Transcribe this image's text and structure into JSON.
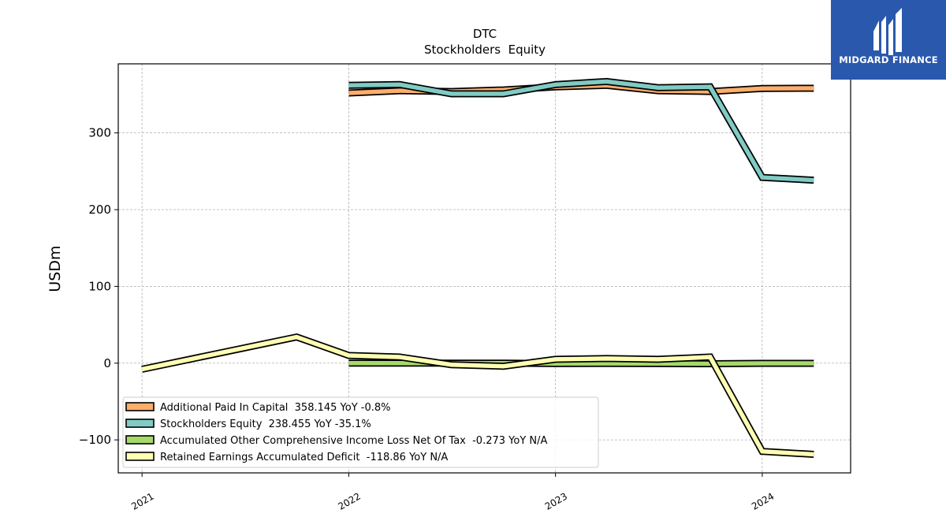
{
  "chart_data": {
    "type": "line",
    "title": "DTC",
    "subtitle": "Stockholders  Equity",
    "ylabel": "USDm",
    "xlabel": "",
    "xlim": [
      "2020-11-20",
      "2024-06-05"
    ],
    "ylim": [
      -143,
      390
    ],
    "yticks": [
      -100,
      0,
      100,
      200,
      300
    ],
    "ytick_labels": [
      "−100",
      "0",
      "100",
      "200",
      "300"
    ],
    "xticks": [
      "2021-01-01",
      "2022-01-01",
      "2023-01-01",
      "2024-01-01"
    ],
    "xtick_labels": [
      "2021",
      "2022",
      "2023",
      "2024"
    ],
    "grid": true,
    "legend_position": "lower-left",
    "series": [
      {
        "name": "Additional Paid In Capital  358.145 YoY -0.8%",
        "color": "#fdae6b",
        "x": [
          "2022-01-01",
          "2022-04-01",
          "2022-07-01",
          "2022-10-01",
          "2023-01-01",
          "2023-04-01",
          "2023-07-01",
          "2023-10-01",
          "2024-01-01",
          "2024-04-01"
        ],
        "values": [
          352,
          355,
          354,
          356,
          360,
          362,
          355,
          354,
          358,
          358.145
        ]
      },
      {
        "name": "Stockholders Equity  238.455 YoY -35.1%",
        "color": "#80cbc4",
        "x": [
          "2022-01-01",
          "2022-04-01",
          "2022-07-01",
          "2022-10-01",
          "2023-01-01",
          "2023-04-01",
          "2023-07-01",
          "2023-10-01",
          "2024-01-01",
          "2024-04-01"
        ],
        "values": [
          362,
          363,
          351,
          351,
          363,
          367,
          359,
          360,
          242,
          238.455
        ]
      },
      {
        "name": "Accumulated Other Comprehensive Income Loss Net Of Tax  -0.273 YoY N/A",
        "color": "#a6d96a",
        "x": [
          "2022-01-01",
          "2022-04-01",
          "2022-07-01",
          "2022-10-01",
          "2023-01-01",
          "2023-04-01",
          "2023-07-01",
          "2023-10-01",
          "2024-01-01",
          "2024-04-01"
        ],
        "values": [
          0,
          0,
          0,
          0,
          -0.5,
          -0.4,
          -0.6,
          -0.8,
          -0.3,
          -0.273
        ]
      },
      {
        "name": "Retained Earnings Accumulated Deficit  -118.86 YoY N/A",
        "color": "#ffffb3",
        "x": [
          "2021-01-01",
          "2021-10-01",
          "2022-01-01",
          "2022-04-01",
          "2022-07-01",
          "2022-10-01",
          "2023-01-01",
          "2023-04-01",
          "2023-07-01",
          "2023-10-01",
          "2024-01-01",
          "2024-04-01"
        ],
        "values": [
          -8,
          34,
          10,
          8,
          -2,
          -4,
          5,
          6,
          5,
          8,
          -115,
          -118.86
        ]
      }
    ]
  },
  "logo": {
    "text": "MIDGARD FINANCE",
    "background": "#2a58ad",
    "icon": "midgard-logo-icon"
  }
}
